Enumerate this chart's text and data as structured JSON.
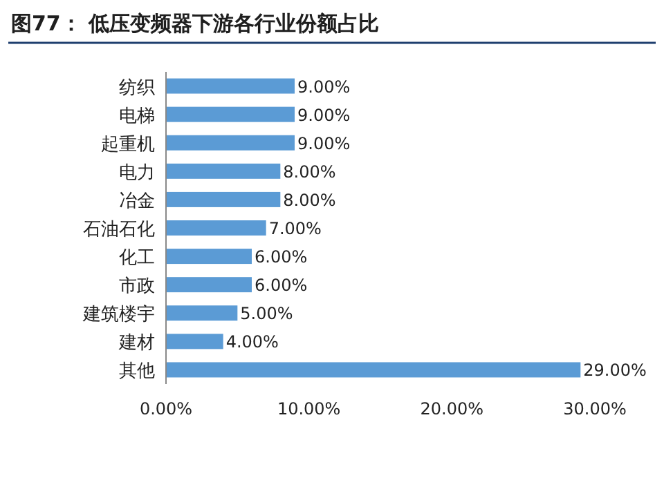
{
  "chart_data": {
    "type": "bar",
    "orientation": "horizontal",
    "title": "图77：  低压变频器下游各行业份额占比",
    "categories": [
      "纺织",
      "电梯",
      "起重机",
      "电力",
      "冶金",
      "石油石化",
      "化工",
      "市政",
      "建筑楼宇",
      "建材",
      "其他"
    ],
    "values": [
      9,
      9,
      9,
      8,
      8,
      7,
      6,
      6,
      5,
      4,
      29
    ],
    "value_labels": [
      "9.00%",
      "9.00%",
      "9.00%",
      "8.00%",
      "8.00%",
      "7.00%",
      "6.00%",
      "6.00%",
      "5.00%",
      "4.00%",
      "29.00%"
    ],
    "color": "#5b9bd5",
    "xlim": [
      0,
      30
    ],
    "xticks": [
      {
        "value": 0,
        "label": "0.00%"
      },
      {
        "value": 10,
        "label": "10.00%"
      },
      {
        "value": 20,
        "label": "20.00%"
      },
      {
        "value": 30,
        "label": "30.00%"
      }
    ]
  }
}
